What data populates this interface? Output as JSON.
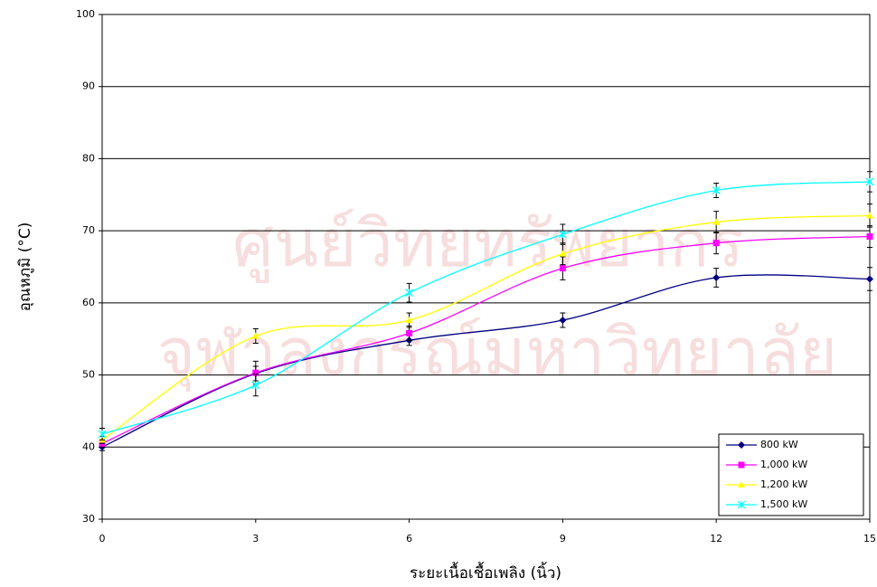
{
  "chart_data": {
    "type": "line",
    "watermark": [
      "ศูนย์วิทยทรัพยากร",
      "จุฬาลงกรณ์มหาวิทยาลัย"
    ],
    "x_label": "ระยะเนื้อเชื้อเพลิง (นิ้ว)",
    "y_label": "อุณหภูมิ (°C)",
    "x": [
      0,
      3,
      6,
      9,
      12,
      15
    ],
    "xlim": [
      0,
      15
    ],
    "xticks": [
      0,
      3,
      6,
      9,
      12,
      15
    ],
    "ylim": [
      30,
      100
    ],
    "yticks": [
      30,
      40,
      50,
      60,
      70,
      80,
      90,
      100
    ],
    "grid": true,
    "smooth": true,
    "legend": "lower right",
    "series": [
      {
        "name": "800 kW",
        "color": "#000080",
        "marker": "diamond",
        "values": [
          40.0,
          50.2,
          54.8,
          57.6,
          63.5,
          63.3
        ],
        "errors": [
          0.5,
          1.0,
          0.7,
          1.0,
          1.3,
          1.6
        ]
      },
      {
        "name": "1,000 kW",
        "color": "#ff00ff",
        "marker": "square",
        "values": [
          40.5,
          50.3,
          55.8,
          64.8,
          68.3,
          69.2
        ],
        "errors": [
          0.5,
          1.6,
          1.0,
          1.6,
          1.5,
          1.5
        ]
      },
      {
        "name": "1,200 kW",
        "color": "#ffff00",
        "marker": "triangle",
        "values": [
          41.0,
          55.4,
          57.6,
          66.8,
          71.2,
          72.1
        ],
        "errors": [
          0.5,
          1.0,
          1.0,
          1.5,
          1.5,
          1.6
        ]
      },
      {
        "name": "1,500 kW",
        "color": "#00ffff",
        "marker": "star",
        "values": [
          41.8,
          48.6,
          61.4,
          69.5,
          75.6,
          76.8
        ],
        "errors": [
          0.8,
          1.5,
          1.3,
          1.4,
          1.0,
          1.4
        ]
      }
    ]
  }
}
